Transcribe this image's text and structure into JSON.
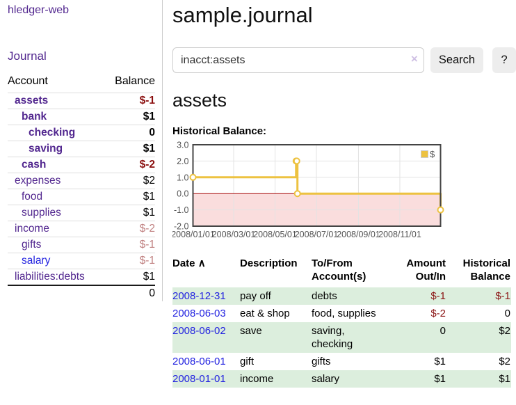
{
  "colors": {
    "link_purple": "#52278f",
    "link_blue": "#2323e0",
    "neg_strong": "#8b0f0f",
    "neg_soft": "#c08080",
    "stripe_green": "#dceedd",
    "series_gold": "#edc240",
    "negative_region_pink": "#fadddd",
    "zero_line_red": "#a40000",
    "grid_gray": "#e3e3e3",
    "chart_border": "#444444",
    "tick_text": "#545454"
  },
  "sidebar": {
    "app_title": "hledger-web",
    "journal_link": "Journal",
    "accounts_table": {
      "col_account": "Account",
      "col_balance": "Balance",
      "rows": [
        {
          "name": "assets",
          "depth": 1,
          "bold": true,
          "link_color": "purple",
          "balance": "$-1",
          "balance_style": "negstrong"
        },
        {
          "name": "bank",
          "depth": 2,
          "bold": true,
          "link_color": "purple",
          "balance": "$1",
          "balance_style": ""
        },
        {
          "name": "checking",
          "depth": 3,
          "bold": true,
          "link_color": "purple",
          "balance": "0",
          "balance_style": ""
        },
        {
          "name": "saving",
          "depth": 3,
          "bold": true,
          "link_color": "purple",
          "balance": "$1",
          "balance_style": ""
        },
        {
          "name": "cash",
          "depth": 2,
          "bold": true,
          "link_color": "purple",
          "balance": "$-2",
          "balance_style": "negstrong"
        },
        {
          "name": "expenses",
          "depth": 1,
          "bold": false,
          "link_color": "purple",
          "balance": "$2",
          "balance_style": ""
        },
        {
          "name": "food",
          "depth": 2,
          "bold": false,
          "link_color": "purple",
          "balance": "$1",
          "balance_style": ""
        },
        {
          "name": "supplies",
          "depth": 2,
          "bold": false,
          "link_color": "purple",
          "balance": "$1",
          "balance_style": ""
        },
        {
          "name": "income",
          "depth": 1,
          "bold": false,
          "link_color": "purple",
          "balance": "$-2",
          "balance_style": "negsoft"
        },
        {
          "name": "gifts",
          "depth": 2,
          "bold": false,
          "link_color": "purple",
          "balance": "$-1",
          "balance_style": "negsoft"
        },
        {
          "name": "salary",
          "depth": 2,
          "bold": false,
          "link_color": "blue",
          "balance": "$-1",
          "balance_style": "negsoft"
        },
        {
          "name": "liabilities:debts",
          "depth": 1,
          "bold": false,
          "link_color": "purple",
          "balance": "$1",
          "balance_style": ""
        }
      ],
      "total": "0"
    }
  },
  "header": {
    "title": "sample.journal"
  },
  "search": {
    "query": "inacct:assets",
    "clear_icon": "×",
    "button_label": "Search",
    "help_label": "?"
  },
  "account_page": {
    "heading": "assets",
    "chart_label": "Historical Balance:"
  },
  "chart_data": {
    "type": "line",
    "title": "Historical Balance:",
    "legend_label": "$",
    "legend_position": "top-right",
    "grid": true,
    "steps": true,
    "ylim": [
      -2.0,
      3.0
    ],
    "xlim_days": [
      0,
      365
    ],
    "y_ticks": [
      {
        "label": "3.0",
        "value": 3
      },
      {
        "label": "2.0",
        "value": 2
      },
      {
        "label": "1.0",
        "value": 1
      },
      {
        "label": "0.0",
        "value": 0
      },
      {
        "label": "-1.0",
        "value": -1
      },
      {
        "label": "-2.0",
        "value": -2
      }
    ],
    "x_ticks": [
      {
        "label": "2008/01/01",
        "day": 0
      },
      {
        "label": "2008/03/01",
        "day": 60
      },
      {
        "label": "2008/05/01",
        "day": 121
      },
      {
        "label": "2008/07/01",
        "day": 182
      },
      {
        "label": "2008/09/01",
        "day": 244
      },
      {
        "label": "2008/11/01",
        "day": 305
      }
    ],
    "series": [
      {
        "name": "$",
        "color": "#edc240",
        "points": [
          {
            "date": "2008-01-01",
            "day": 0,
            "value": 1
          },
          {
            "date": "2008-06-01",
            "day": 152,
            "value": 2
          },
          {
            "date": "2008-06-02",
            "day": 153,
            "value": 2
          },
          {
            "date": "2008-06-03",
            "day": 154,
            "value": 0
          },
          {
            "date": "2008-12-31",
            "day": 365,
            "value": -1
          }
        ]
      }
    ],
    "negative_region": {
      "from": 0,
      "to": -2
    }
  },
  "register_table": {
    "headers": {
      "date": "Date",
      "sort_icon": "∧",
      "description": "Description",
      "tofrom": "To/From Account(s)",
      "amount": "Amount Out/In",
      "balance": "Historical Balance"
    },
    "rows": [
      {
        "date": "2008-12-31",
        "description": "pay off",
        "accounts": "debts",
        "amount": "$-1",
        "amount_neg": true,
        "balance": "$-1",
        "balance_neg": true,
        "striped": true
      },
      {
        "date": "2008-06-03",
        "description": "eat & shop",
        "accounts": "food, supplies",
        "amount": "$-2",
        "amount_neg": true,
        "balance": "0",
        "balance_neg": false,
        "striped": false
      },
      {
        "date": "2008-06-02",
        "description": "save",
        "accounts": "saving, checking",
        "amount": "0",
        "amount_neg": false,
        "balance": "$2",
        "balance_neg": false,
        "striped": true
      },
      {
        "date": "2008-06-01",
        "description": "gift",
        "accounts": "gifts",
        "amount": "$1",
        "amount_neg": false,
        "balance": "$2",
        "balance_neg": false,
        "striped": false
      },
      {
        "date": "2008-01-01",
        "description": "income",
        "accounts": "salary",
        "amount": "$1",
        "amount_neg": false,
        "balance": "$1",
        "balance_neg": false,
        "striped": true
      }
    ]
  }
}
